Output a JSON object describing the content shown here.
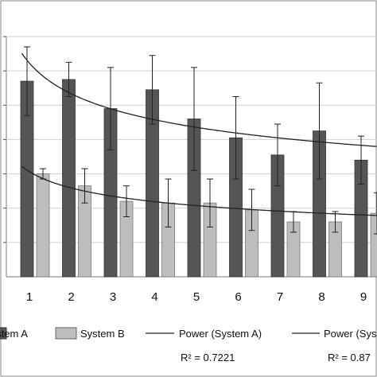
{
  "chart_data": {
    "type": "bar",
    "categories": [
      "1",
      "2",
      "3",
      "4",
      "5",
      "6",
      "7",
      "8",
      "9"
    ],
    "series": [
      {
        "name": "System A",
        "color": "#555555",
        "values": [
          57,
          57.5,
          49,
          54.5,
          46,
          40.5,
          35.5,
          42.5,
          34
        ],
        "error": [
          10,
          5,
          12,
          10,
          15,
          12,
          9,
          14,
          7
        ]
      },
      {
        "name": "System B",
        "color": "#bdbdbd",
        "values": [
          30,
          26.5,
          22,
          21.5,
          21.5,
          19.5,
          16,
          16,
          18.5
        ],
        "error": [
          1.5,
          5,
          4.5,
          7,
          7,
          6,
          3,
          3,
          6
        ]
      }
    ],
    "trendlines": [
      {
        "name": "Power (System A)",
        "type": "power",
        "coef": 62,
        "exponent": -0.22,
        "r2_label": "R² = 0.7221"
      },
      {
        "name": "Power (System B)",
        "type": "power",
        "coef": 30.5,
        "exponent": -0.24,
        "r2_label": "R² = 0.87"
      }
    ],
    "ylim": [
      0,
      70
    ],
    "grid": true,
    "legend": {
      "position": "bottom",
      "items": [
        "System A",
        "System B",
        "Power (System A)",
        "Power (System B)"
      ]
    },
    "title": "",
    "xlabel": "",
    "ylabel": ""
  }
}
